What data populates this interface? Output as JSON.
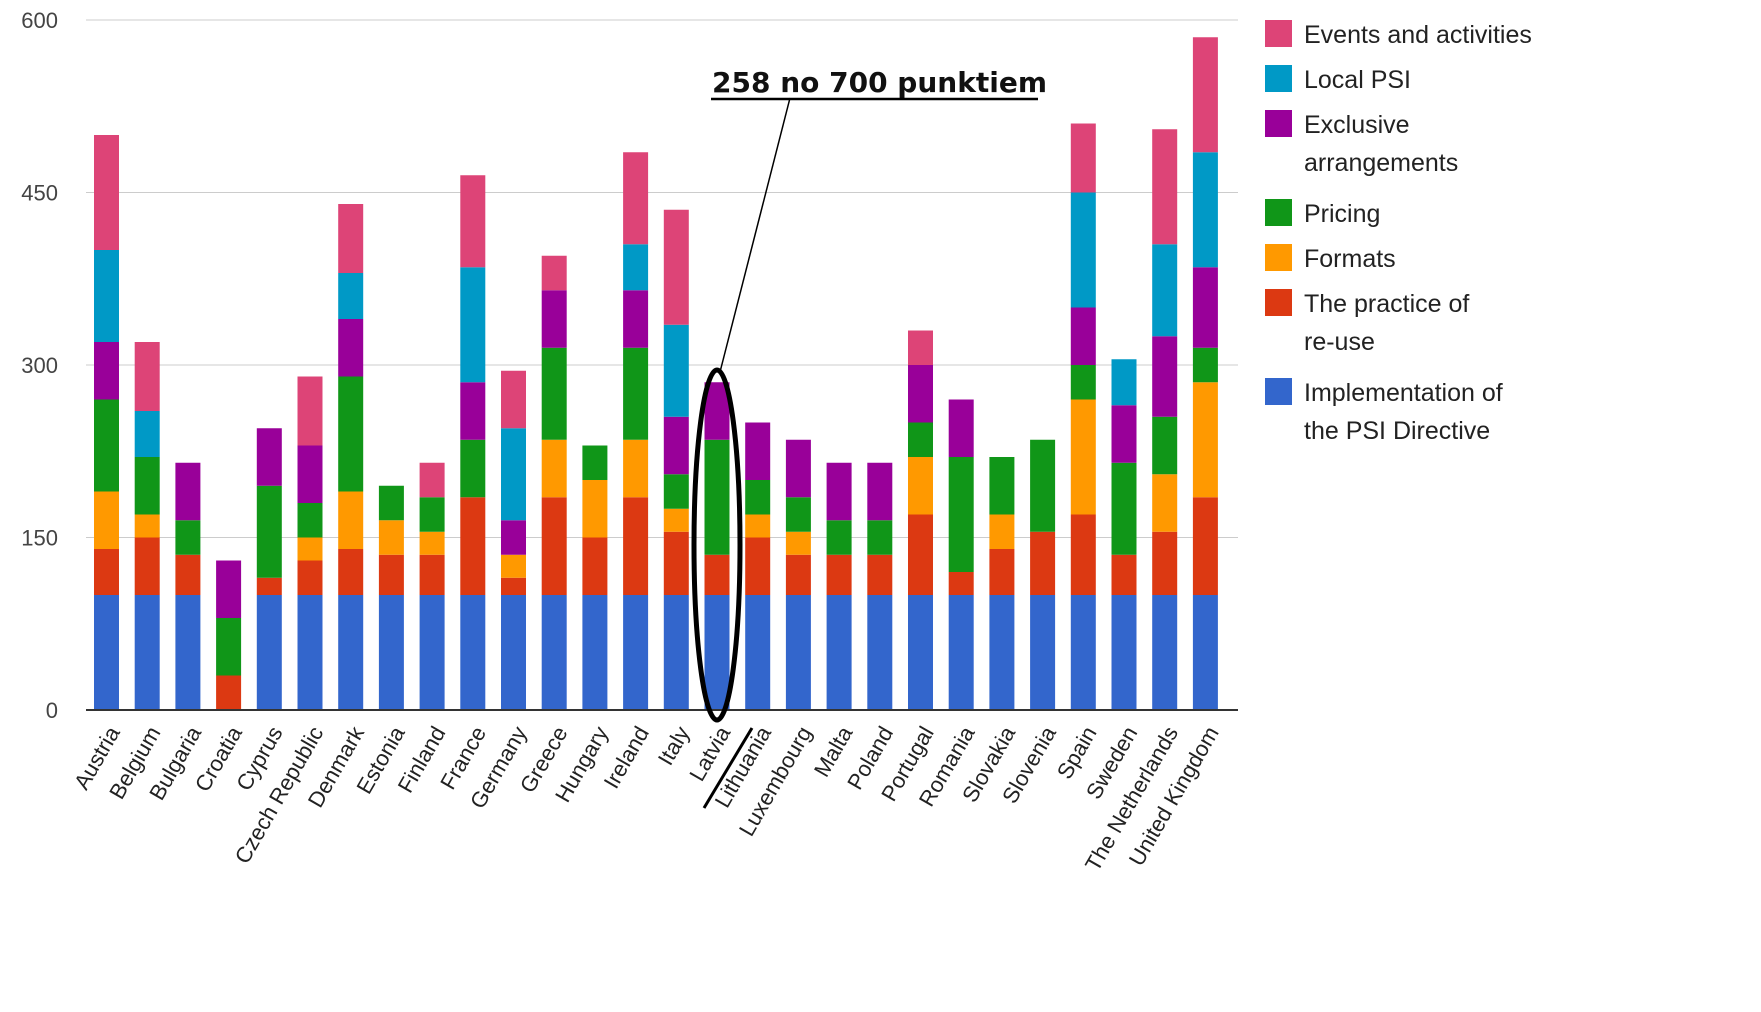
{
  "chart_data": {
    "type": "bar",
    "stacked": true,
    "ylim": [
      0,
      600
    ],
    "yticks": [
      0,
      150,
      300,
      450,
      600
    ],
    "grid": true,
    "legend_position": "right",
    "categories": [
      "Austria",
      "Belgium",
      "Bulgaria",
      "Croatia",
      "Cyprus",
      "Czech Republic",
      "Denmark",
      "Estonia",
      "Finland",
      "France",
      "Germany",
      "Greece",
      "Hungary",
      "Ireland",
      "Italy",
      "Latvia",
      "Lithuania",
      "Luxembourg",
      "Malta",
      "Poland",
      "Portugal",
      "Romania",
      "Slovakia",
      "Slovenia",
      "Spain",
      "Sweden",
      "The Netherlands",
      "United Kingdom"
    ],
    "series": [
      {
        "name": "Implementation of the PSI Directive",
        "legend_lines": [
          "Implementation of",
          "the PSI Directive"
        ],
        "color": "#3366cc",
        "values": [
          100,
          100,
          100,
          0,
          100,
          100,
          100,
          100,
          100,
          100,
          100,
          100,
          100,
          100,
          100,
          100,
          100,
          100,
          100,
          100,
          100,
          100,
          100,
          100,
          100,
          100,
          100,
          100
        ]
      },
      {
        "name": "The practice of re-use",
        "legend_lines": [
          "The practice of",
          "re-use"
        ],
        "color": "#dc3912",
        "values": [
          40,
          50,
          35,
          30,
          15,
          30,
          40,
          35,
          35,
          85,
          15,
          85,
          50,
          85,
          55,
          35,
          50,
          35,
          35,
          35,
          70,
          20,
          40,
          55,
          70,
          35,
          55,
          85
        ]
      },
      {
        "name": "Formats",
        "legend_lines": [
          "Formats"
        ],
        "color": "#ff9900",
        "values": [
          50,
          20,
          0,
          0,
          0,
          20,
          50,
          30,
          20,
          0,
          20,
          50,
          50,
          50,
          20,
          0,
          20,
          20,
          0,
          0,
          50,
          0,
          30,
          0,
          100,
          0,
          50,
          100
        ]
      },
      {
        "name": "Pricing",
        "legend_lines": [
          "Pricing"
        ],
        "color": "#109618",
        "values": [
          80,
          50,
          30,
          50,
          80,
          30,
          100,
          30,
          30,
          50,
          0,
          80,
          30,
          80,
          30,
          100,
          30,
          30,
          30,
          30,
          30,
          100,
          50,
          80,
          30,
          80,
          50,
          30
        ]
      },
      {
        "name": "Exclusive arrangements",
        "legend_lines": [
          "Exclusive",
          "arrangements"
        ],
        "color": "#990099",
        "values": [
          50,
          0,
          50,
          50,
          50,
          50,
          50,
          0,
          0,
          50,
          30,
          50,
          0,
          50,
          50,
          50,
          50,
          50,
          50,
          50,
          50,
          50,
          0,
          0,
          50,
          50,
          70,
          70
        ]
      },
      {
        "name": "Local PSI",
        "legend_lines": [
          "Local PSI"
        ],
        "color": "#0099c6",
        "values": [
          80,
          40,
          0,
          0,
          0,
          0,
          40,
          0,
          0,
          100,
          80,
          0,
          0,
          40,
          80,
          0,
          0,
          0,
          0,
          0,
          0,
          0,
          0,
          0,
          100,
          40,
          80,
          100
        ]
      },
      {
        "name": "Events and activities",
        "legend_lines": [
          "Events and activities"
        ],
        "color": "#dd4477",
        "values": [
          100,
          60,
          0,
          0,
          0,
          60,
          60,
          0,
          30,
          80,
          50,
          30,
          0,
          80,
          100,
          0,
          0,
          0,
          0,
          0,
          30,
          0,
          0,
          0,
          60,
          0,
          100,
          100
        ]
      }
    ],
    "annotation": {
      "text": "258 no 700 punktiem",
      "target_category": "Latvia"
    }
  }
}
